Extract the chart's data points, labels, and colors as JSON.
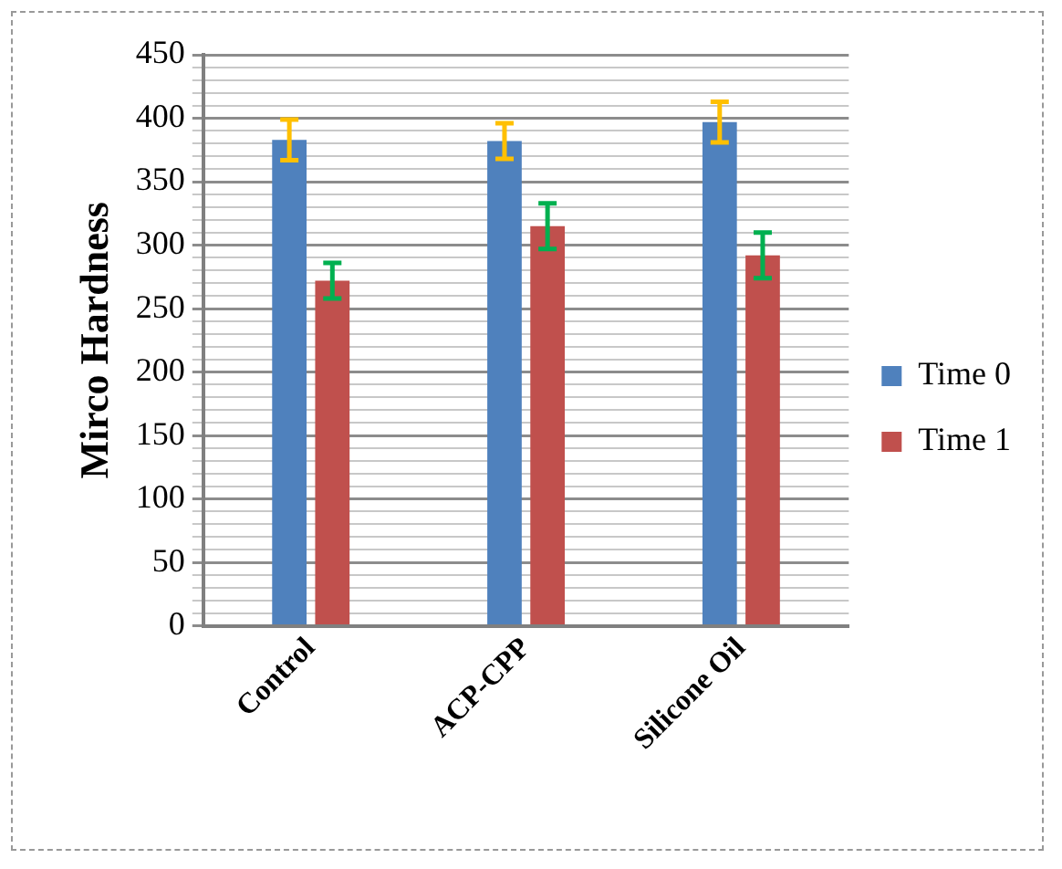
{
  "chart_data": {
    "type": "bar",
    "ylabel": "Mirco Hardness",
    "categories": [
      "Control",
      "ACP-CPP",
      "Silicone Oil"
    ],
    "series": [
      {
        "name": "Time 0",
        "color": "#4f81bd",
        "values": [
          383,
          382,
          397
        ],
        "errors": [
          16,
          14,
          16
        ]
      },
      {
        "name": "Time 1",
        "color": "#c0504d",
        "values": [
          272,
          315,
          292
        ],
        "errors": [
          14,
          18,
          18
        ]
      }
    ],
    "ylim": [
      0,
      450
    ],
    "yticks": [
      0,
      {
        "value": 10,
        "label": null
      },
      {
        "value": 20,
        "label": null
      },
      {
        "value": 30,
        "label": null
      },
      {
        "value": 40,
        "label": null
      },
      50,
      {
        "value": 60,
        "label": null
      },
      {
        "value": 70,
        "label": null
      },
      {
        "value": 80,
        "label": null
      },
      {
        "value": 90,
        "label": null
      },
      100,
      {
        "value": 110,
        "label": null
      },
      {
        "value": 120,
        "label": null
      },
      {
        "value": 130,
        "label": null
      },
      {
        "value": 140,
        "label": null
      },
      150,
      {
        "value": 160,
        "label": null
      },
      {
        "value": 170,
        "label": null
      },
      {
        "value": 180,
        "label": null
      },
      {
        "value": 190,
        "label": null
      },
      200,
      {
        "value": 210,
        "label": null
      },
      {
        "value": 220,
        "label": null
      },
      {
        "value": 230,
        "label": null
      },
      {
        "value": 240,
        "label": null
      },
      250,
      {
        "value": 260,
        "label": null
      },
      {
        "value": 270,
        "label": null
      },
      {
        "value": 280,
        "label": null
      },
      {
        "value": 290,
        "label": null
      },
      300,
      {
        "value": 310,
        "label": null
      },
      {
        "value": 320,
        "label": null
      },
      {
        "value": 330,
        "label": null
      },
      {
        "value": 340,
        "label": null
      },
      350,
      {
        "value": 360,
        "label": null
      },
      {
        "value": 370,
        "label": null
      },
      {
        "value": 380,
        "label": null
      },
      {
        "value": 390,
        "label": null
      },
      400,
      {
        "value": 410,
        "label": null
      },
      {
        "value": 420,
        "label": null
      },
      {
        "value": 430,
        "label": null
      },
      {
        "value": 440,
        "label": null
      },
      450
    ],
    "grid": "y",
    "legend": "right"
  }
}
